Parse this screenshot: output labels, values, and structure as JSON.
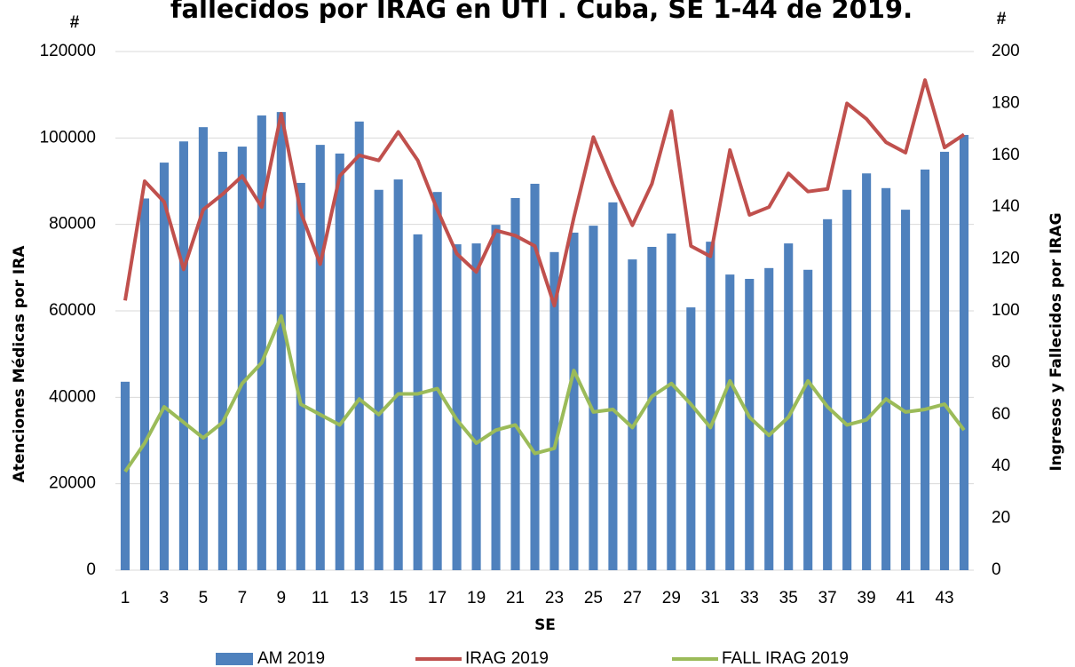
{
  "chart_data": {
    "type": "bar",
    "title": "fallecidos por IRAG en UTI . Cuba, SE 1-44 de 2019.",
    "xlabel": "SE",
    "ylabel": "Atenciones Médicas por IRA",
    "y2label": "Ingresos y Fallecidos por IRAG",
    "yunit": "#",
    "y2unit": "#",
    "categories": [
      "1",
      null,
      "3",
      null,
      "5",
      null,
      "7",
      null,
      "9",
      null,
      "11",
      null,
      "13",
      null,
      "15",
      null,
      "17",
      null,
      "19",
      null,
      "21",
      null,
      "23",
      null,
      "25",
      null,
      "27",
      null,
      "29",
      null,
      "31",
      null,
      "33",
      null,
      "35",
      null,
      "37",
      null,
      "39",
      null,
      "41",
      null,
      "43",
      null
    ],
    "ylim": [
      0,
      120000
    ],
    "yticks": [
      0,
      20000,
      40000,
      60000,
      80000,
      100000,
      120000
    ],
    "y2lim": [
      0,
      200
    ],
    "y2ticks": [
      0,
      20,
      40,
      60,
      80,
      100,
      120,
      140,
      160,
      180,
      200
    ],
    "grid": true,
    "legend": "bottom",
    "series": [
      {
        "name": "AM 2019",
        "type": "bar",
        "color": "#4f81bd",
        "values": [
          43600,
          86000,
          94300,
          99200,
          102500,
          96800,
          98000,
          105200,
          106000,
          89600,
          98400,
          96400,
          103800,
          88000,
          90400,
          77700,
          87500,
          75400,
          75600,
          79900,
          86100,
          89400,
          73600,
          78100,
          79700,
          85100,
          71900,
          74800,
          77900,
          60800,
          76000,
          68400,
          67400,
          69900,
          75600,
          69500,
          81200,
          88000,
          91800,
          88400,
          83400,
          92700,
          96800,
          100700
        ]
      },
      {
        "name": "IRAG 2019",
        "type": "line",
        "axis": "y2",
        "color": "#c0504d",
        "values": [
          104,
          150,
          142,
          116,
          139,
          145,
          152,
          140,
          176,
          138,
          118,
          152,
          160,
          158,
          169,
          158,
          139,
          122,
          115,
          131,
          129,
          125,
          102,
          136,
          167,
          149,
          133,
          149,
          177,
          125,
          121,
          162,
          137,
          140,
          153,
          146,
          147,
          180,
          174,
          165,
          161,
          189,
          163,
          168
        ]
      },
      {
        "name": "FALL IRAG 2019",
        "type": "line",
        "axis": "y2",
        "color": "#9bbb59",
        "values": [
          38,
          49,
          63,
          57,
          51,
          57,
          72,
          80,
          98,
          64,
          60,
          56,
          66,
          60,
          68,
          68,
          70,
          58,
          49,
          54,
          56,
          45,
          47,
          77,
          61,
          62,
          55,
          67,
          72,
          64,
          55,
          73,
          59,
          52,
          59,
          73,
          63,
          56,
          58,
          66,
          61,
          62,
          64,
          54
        ]
      }
    ]
  }
}
